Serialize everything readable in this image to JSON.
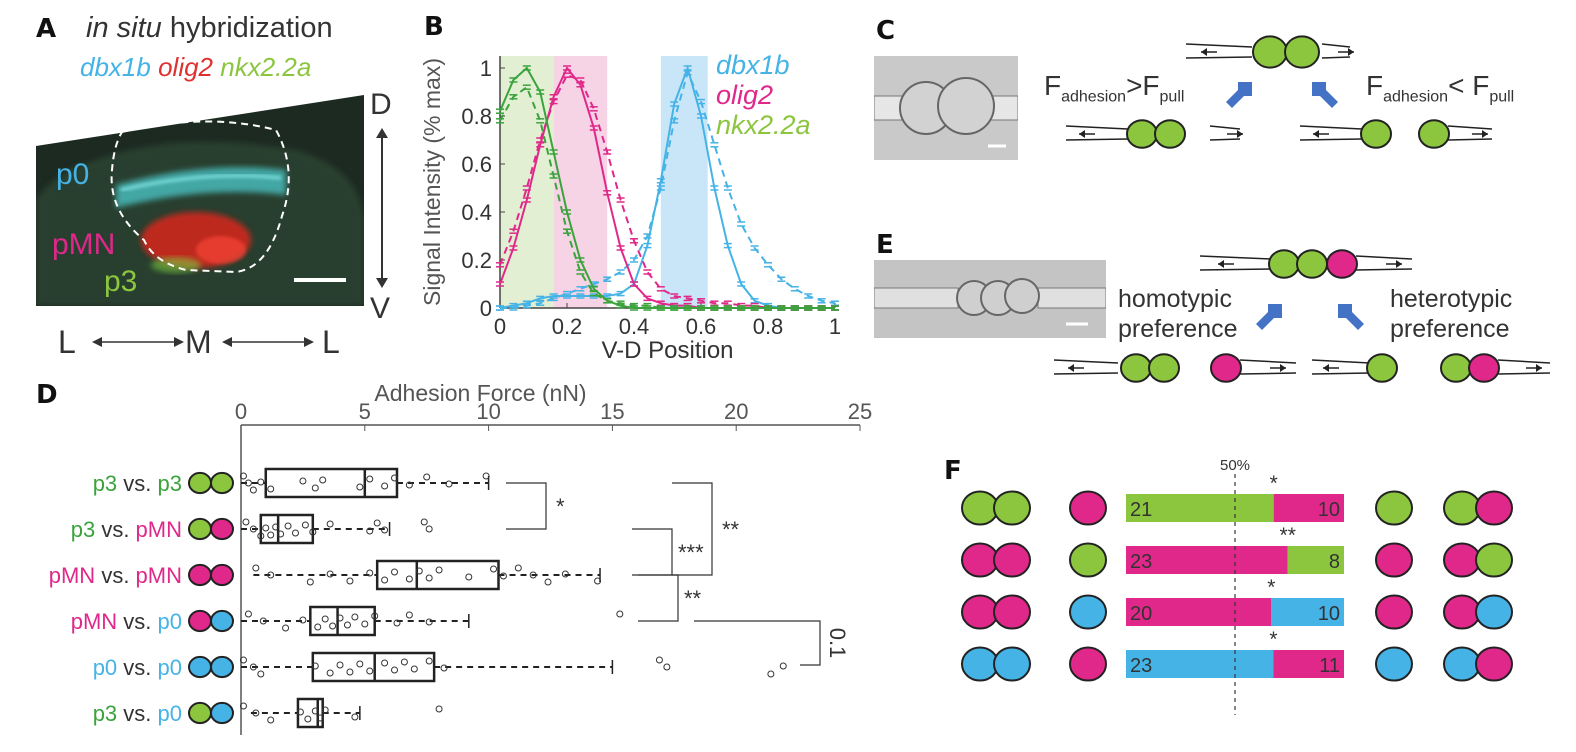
{
  "colors": {
    "cyan": "#45b3e6",
    "magenta": "#e0288a",
    "green": "#8cc63f",
    "green_dark": "#3aa33c",
    "arrow_blue": "#4472c4"
  },
  "panelA": {
    "label": "A",
    "title_italic": "in situ",
    "title_rest": " hybridization",
    "genes": [
      "dbx1b",
      "olig2",
      "nkx2.2a"
    ],
    "regions": [
      "p0",
      "pMN",
      "p3"
    ],
    "axis_d": "D",
    "axis_v": "V",
    "axis_l1": "L",
    "axis_m": "M",
    "axis_l2": "L"
  },
  "panelB": {
    "label": "B",
    "chart_data": {
      "type": "line",
      "xlabel": "V-D Position",
      "ylabel": "Signal Intensity (% max)",
      "xlim": [
        0,
        1
      ],
      "ylim": [
        0,
        1.05
      ],
      "xticks": [
        "0",
        "0.2",
        "0.4",
        "0.6",
        "0.8",
        "1"
      ],
      "yticks": [
        "0",
        "0.2",
        "0.4",
        "0.6",
        "0.8",
        "1"
      ],
      "legend": [
        "dbx1b",
        "olig2",
        "nkx2.2a"
      ],
      "shaded_bands": [
        {
          "gene": "nkx2.2a",
          "x": [
            0.0,
            0.16
          ]
        },
        {
          "gene": "olig2",
          "x": [
            0.16,
            0.32
          ]
        },
        {
          "gene": "dbx1b",
          "x": [
            0.48,
            0.62
          ]
        }
      ],
      "x": [
        0,
        0.04,
        0.08,
        0.12,
        0.16,
        0.2,
        0.24,
        0.28,
        0.32,
        0.36,
        0.4,
        0.44,
        0.48,
        0.52,
        0.56,
        0.6,
        0.64,
        0.68,
        0.72,
        0.76,
        0.8,
        0.84,
        0.88,
        0.92,
        0.96,
        1.0
      ],
      "series": [
        {
          "name": "dbx1b",
          "style": "solid",
          "values": [
            0.0,
            0.01,
            0.02,
            0.04,
            0.05,
            0.05,
            0.05,
            0.05,
            0.05,
            0.06,
            0.1,
            0.26,
            0.53,
            0.85,
            1.0,
            0.8,
            0.5,
            0.26,
            0.1,
            0.03,
            0.01,
            0.0,
            0.0,
            0.0,
            0.0,
            0.0
          ]
        },
        {
          "name": "dbx1b",
          "style": "dashed",
          "values": [
            0.0,
            0.0,
            0.01,
            0.02,
            0.04,
            0.06,
            0.08,
            0.1,
            0.12,
            0.15,
            0.2,
            0.3,
            0.5,
            0.78,
            0.98,
            0.86,
            0.68,
            0.5,
            0.35,
            0.25,
            0.18,
            0.12,
            0.08,
            0.05,
            0.03,
            0.02
          ]
        },
        {
          "name": "olig2",
          "style": "solid",
          "values": [
            0.1,
            0.25,
            0.45,
            0.68,
            0.88,
            1.0,
            0.93,
            0.75,
            0.48,
            0.25,
            0.1,
            0.04,
            0.02,
            0.01,
            0.01,
            0.0,
            0.0,
            0.0,
            0.0,
            0.0,
            0.0,
            0.0,
            0.0,
            0.0,
            0.0,
            0.0
          ]
        },
        {
          "name": "olig2",
          "style": "dashed",
          "values": [
            0.18,
            0.32,
            0.5,
            0.7,
            0.86,
            0.97,
            0.95,
            0.83,
            0.65,
            0.45,
            0.28,
            0.15,
            0.08,
            0.05,
            0.04,
            0.03,
            0.02,
            0.02,
            0.01,
            0.01,
            0.0,
            0.0,
            0.0,
            0.0,
            0.0,
            0.0
          ]
        },
        {
          "name": "nkx2.2a",
          "style": "solid",
          "values": [
            0.82,
            0.95,
            1.0,
            0.9,
            0.65,
            0.4,
            0.2,
            0.08,
            0.03,
            0.01,
            0.0,
            0.0,
            0.0,
            0.0,
            0.0,
            0.0,
            0.0,
            0.0,
            0.0,
            0.0,
            0.0,
            0.0,
            0.0,
            0.0,
            0.0,
            0.0
          ]
        },
        {
          "name": "nkx2.2a",
          "style": "dashed",
          "values": [
            0.78,
            0.88,
            0.92,
            0.78,
            0.55,
            0.32,
            0.15,
            0.06,
            0.03,
            0.02,
            0.01,
            0.01,
            0.0,
            0.0,
            0.0,
            0.0,
            0.0,
            0.0,
            0.0,
            0.0,
            0.0,
            0.0,
            0.0,
            0.0,
            0.0,
            0.0
          ]
        }
      ]
    }
  },
  "panelC": {
    "label": "C",
    "f_letter": "F",
    "sub_adhesion": "adhesion",
    "sub_pull": "pull",
    "gt": ">",
    "lt": "< "
  },
  "panelE": {
    "label": "E",
    "homotypic": [
      "homotypic",
      "preference"
    ],
    "heterotypic": [
      "heterotypic",
      "preference"
    ]
  },
  "panelD": {
    "label": "D",
    "chart_data": {
      "type": "boxplot",
      "xlabel": "Adhesion Force (nN)",
      "xlim": [
        0,
        25
      ],
      "xticks": [
        "0",
        "5",
        "10",
        "15",
        "20",
        "25"
      ],
      "groups": [
        {
          "label_a": "p3",
          "vs": " vs. ",
          "label_b": "p3",
          "cells": [
            "green",
            "green"
          ],
          "whisker": [
            0,
            10
          ],
          "q1": 1,
          "median": 5,
          "q3": 6.3,
          "points": [
            0.1,
            0.3,
            0.5,
            0.8,
            1.2,
            2.5,
            3,
            3.3,
            4.8,
            5.2,
            5.8,
            6.2,
            6.8,
            7.5,
            8.4,
            9.9
          ]
        },
        {
          "label_a": "p3",
          "vs": " vs. ",
          "label_b": "pMN",
          "cells": [
            "green",
            "magenta"
          ],
          "whisker": [
            0,
            6
          ],
          "q1": 0.8,
          "median": 1.5,
          "q3": 2.9,
          "points": [
            0.2,
            0.5,
            0.8,
            1.0,
            1.2,
            1.4,
            1.6,
            1.9,
            2.2,
            2.6,
            2.9,
            3.6,
            5.2,
            5.5,
            5.8,
            7.4,
            7.6
          ]
        },
        {
          "label_a": "pMN",
          "vs": " vs. ",
          "label_b": "pMN",
          "cells": [
            "magenta",
            "magenta"
          ],
          "whisker": [
            0.5,
            14.5
          ],
          "q1": 5.5,
          "median": 7.1,
          "q3": 10.4,
          "points": [
            0.6,
            1.2,
            2.8,
            3.6,
            4.4,
            5.2,
            5.8,
            6.2,
            6.8,
            7.2,
            7.6,
            8.0,
            9.2,
            10.2,
            10.6,
            11.2,
            11.8,
            12.4,
            13.1,
            14.4
          ]
        },
        {
          "label_a": "pMN",
          "vs": " vs. ",
          "label_b": "p0",
          "cells": [
            "magenta",
            "cyan"
          ],
          "whisker": [
            0,
            9.2
          ],
          "q1": 2.8,
          "median": 3.9,
          "q3": 5.4,
          "points": [
            0.3,
            0.9,
            1.8,
            2.5,
            3.1,
            3.4,
            3.7,
            4.0,
            4.3,
            4.6,
            5.0,
            5.4,
            6.3,
            6.8,
            7.6,
            15.3
          ]
        },
        {
          "label_a": "p0",
          "vs": " vs. ",
          "label_b": "p0",
          "cells": [
            "cyan",
            "cyan"
          ],
          "whisker": [
            0,
            15
          ],
          "q1": 2.9,
          "median": 5.4,
          "q3": 7.8,
          "points": [
            0.1,
            0.5,
            0.8,
            3.0,
            3.6,
            4.0,
            4.4,
            4.8,
            5.2,
            5.8,
            6.2,
            6.6,
            7.0,
            7.6,
            8.2,
            16.9,
            17.2,
            21.4,
            21.9
          ]
        },
        {
          "label_a": "p3",
          "vs": " vs. ",
          "label_b": "p0",
          "cells": [
            "green",
            "cyan"
          ],
          "whisker": [
            0.4,
            4.8
          ],
          "q1": 2.3,
          "median": 3.1,
          "q3": 3.3,
          "points": [
            0.1,
            0.6,
            1.2,
            2.4,
            2.7,
            3.0,
            3.2,
            3.4,
            4.6,
            8.0
          ]
        }
      ],
      "significance": [
        {
          "pair": [
            0,
            1
          ],
          "label": "*"
        },
        {
          "pair": [
            1,
            2
          ],
          "label": "***"
        },
        {
          "pair": [
            0,
            2
          ],
          "label": "**"
        },
        {
          "pair": [
            2,
            3
          ],
          "label": "**"
        },
        {
          "pair": [
            3,
            4
          ],
          "label": "0.1"
        }
      ]
    }
  },
  "panelF": {
    "label": "F",
    "chart_data": {
      "type": "stacked-bar",
      "reference_label": "50%",
      "rows": [
        {
          "left": [
            21,
            "green"
          ],
          "right": [
            10,
            "magenta"
          ],
          "star": "*",
          "doublet": [
            "green",
            "green"
          ],
          "single": "magenta",
          "single_right": "green",
          "doublet_right": [
            "green",
            "magenta"
          ]
        },
        {
          "left": [
            23,
            "magenta"
          ],
          "right": [
            8,
            "green"
          ],
          "star": "**",
          "doublet": [
            "magenta",
            "magenta"
          ],
          "single": "green",
          "single_right": "magenta",
          "doublet_right": [
            "magenta",
            "green"
          ]
        },
        {
          "left": [
            20,
            "magenta"
          ],
          "right": [
            10,
            "cyan"
          ],
          "star": "*",
          "doublet": [
            "magenta",
            "magenta"
          ],
          "single": "cyan",
          "single_right": "magenta",
          "doublet_right": [
            "magenta",
            "cyan"
          ]
        },
        {
          "left": [
            23,
            "cyan"
          ],
          "right": [
            11,
            "magenta"
          ],
          "star": "*",
          "doublet": [
            "cyan",
            "cyan"
          ],
          "single": "magenta",
          "single_right": "cyan",
          "doublet_right": [
            "cyan",
            "magenta"
          ]
        }
      ]
    }
  }
}
